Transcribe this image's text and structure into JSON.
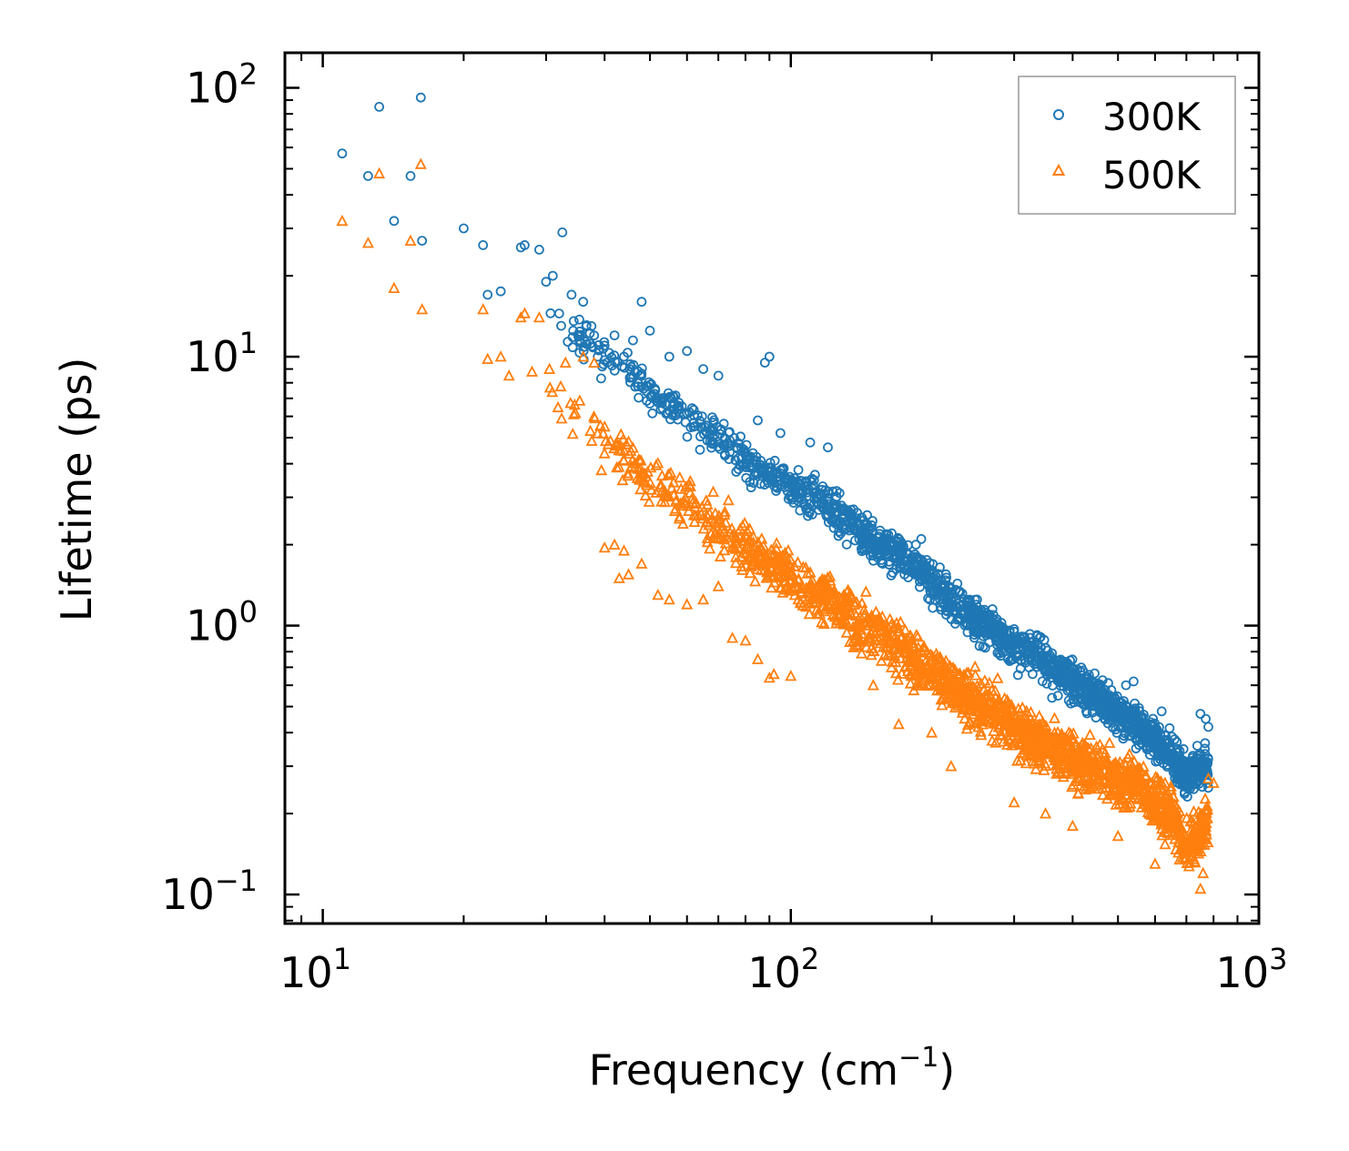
{
  "chart_data": {
    "type": "scatter",
    "title": "",
    "xlabel": "Frequency (cm",
    "xlabel_sup": "−1",
    "xlabel_end": ")",
    "ylabel": "Lifetime (ps)",
    "xscale": "log",
    "yscale": "log",
    "xlim": [
      8.3,
      1000
    ],
    "ylim": [
      0.078,
      135
    ],
    "x_ticks": [
      {
        "base": "10",
        "exp": "1",
        "value": 10
      },
      {
        "base": "10",
        "exp": "2",
        "value": 100
      },
      {
        "base": "10",
        "exp": "3",
        "value": 1000
      }
    ],
    "y_ticks": [
      {
        "base": "10",
        "exp": "−1",
        "value": 0.1
      },
      {
        "base": "10",
        "exp": "0",
        "value": 1
      },
      {
        "base": "10",
        "exp": "1",
        "value": 10
      },
      {
        "base": "10",
        "exp": "2",
        "value": 100
      }
    ],
    "legend_position": "top-right",
    "series": [
      {
        "name": "300K",
        "marker": "circle",
        "color": "#1f77b4",
        "points": [
          [
            11.0,
            57
          ],
          [
            12.5,
            47
          ],
          [
            13.2,
            85
          ],
          [
            14.2,
            32
          ],
          [
            15.4,
            47
          ],
          [
            16.2,
            92
          ],
          [
            16.3,
            27
          ],
          [
            20.0,
            30
          ],
          [
            22.0,
            26
          ],
          [
            22.5,
            17
          ],
          [
            24.0,
            17.5
          ],
          [
            26.5,
            25.5
          ],
          [
            27.0,
            26
          ],
          [
            29.0,
            25
          ],
          [
            30.0,
            19
          ],
          [
            31.0,
            20
          ],
          [
            32.5,
            29
          ],
          [
            34.0,
            17
          ],
          [
            36.0,
            16
          ],
          [
            37.5,
            13
          ],
          [
            38.0,
            12
          ],
          [
            40.0,
            11
          ],
          [
            42.0,
            12
          ],
          [
            44.0,
            10
          ],
          [
            46.0,
            11.5
          ],
          [
            48.0,
            16
          ],
          [
            50.0,
            12.5
          ],
          [
            55.0,
            10
          ],
          [
            60.0,
            10.5
          ],
          [
            65.0,
            9
          ],
          [
            70.0,
            8.5
          ],
          [
            88.0,
            9.5
          ],
          [
            90.0,
            10
          ],
          [
            85.0,
            5.8
          ],
          [
            95.0,
            5.2
          ],
          [
            110.0,
            4.8
          ],
          [
            120.0,
            4.6
          ],
          [
            185.0,
            2.0
          ],
          [
            190.0,
            2.1
          ],
          [
            250.0,
            1.25
          ],
          [
            300.0,
            0.95
          ],
          [
            340.0,
            0.9
          ],
          [
            520.0,
            0.6
          ],
          [
            540.0,
            0.62
          ],
          [
            620.0,
            0.48
          ],
          [
            750.0,
            0.47
          ],
          [
            770.0,
            0.45
          ],
          [
            780.0,
            0.42
          ]
        ],
        "trend": [
          [
            30.0,
            15
          ],
          [
            40.0,
            10
          ],
          [
            50.0,
            7.5
          ],
          [
            60.0,
            6.0
          ],
          [
            70.0,
            5.0
          ],
          [
            80.0,
            4.2
          ],
          [
            100.0,
            3.3
          ],
          [
            120.0,
            2.8
          ],
          [
            150.0,
            2.1
          ],
          [
            180.0,
            1.7
          ],
          [
            220.0,
            1.25
          ],
          [
            270.0,
            0.95
          ],
          [
            330.0,
            0.78
          ],
          [
            400.0,
            0.62
          ],
          [
            480.0,
            0.5
          ],
          [
            560.0,
            0.42
          ],
          [
            650.0,
            0.33
          ],
          [
            700.0,
            0.27
          ],
          [
            740.0,
            0.3
          ],
          [
            780.0,
            0.3
          ]
        ]
      },
      {
        "name": "500K",
        "marker": "triangle",
        "color": "#ff7f0e",
        "points": [
          [
            11.0,
            32
          ],
          [
            12.5,
            26.5
          ],
          [
            13.2,
            48
          ],
          [
            14.2,
            18
          ],
          [
            15.4,
            27
          ],
          [
            16.2,
            52
          ],
          [
            16.3,
            15
          ],
          [
            22.0,
            15
          ],
          [
            22.5,
            9.8
          ],
          [
            24.0,
            10
          ],
          [
            25.0,
            8.5
          ],
          [
            26.5,
            14
          ],
          [
            27.0,
            14.5
          ],
          [
            28.0,
            8.8
          ],
          [
            29.0,
            14
          ],
          [
            30.5,
            9.0
          ],
          [
            33.0,
            9.5
          ],
          [
            36.0,
            10
          ],
          [
            38.0,
            9.5
          ],
          [
            40.0,
            1.95
          ],
          [
            42.0,
            2.0
          ],
          [
            43.0,
            1.5
          ],
          [
            44.0,
            1.9
          ],
          [
            45.0,
            1.55
          ],
          [
            48.0,
            1.7
          ],
          [
            52.0,
            1.3
          ],
          [
            55.0,
            1.25
          ],
          [
            60.0,
            1.2
          ],
          [
            65.0,
            1.25
          ],
          [
            70.0,
            1.4
          ],
          [
            75.0,
            0.9
          ],
          [
            80.0,
            0.88
          ],
          [
            85.0,
            0.75
          ],
          [
            90.0,
            0.64
          ],
          [
            92.0,
            0.66
          ],
          [
            100.0,
            0.65
          ],
          [
            150.0,
            0.6
          ],
          [
            170.0,
            0.43
          ],
          [
            200.0,
            0.4
          ],
          [
            220.0,
            0.3
          ],
          [
            300.0,
            0.22
          ],
          [
            350.0,
            0.2
          ],
          [
            400.0,
            0.18
          ],
          [
            500.0,
            0.165
          ],
          [
            600.0,
            0.13
          ],
          [
            700.0,
            0.15
          ],
          [
            750.0,
            0.105
          ],
          [
            760.0,
            0.12
          ],
          [
            780.0,
            0.27
          ],
          [
            800.0,
            0.26
          ]
        ],
        "trend": [
          [
            30.0,
            8
          ],
          [
            40.0,
            5.0
          ],
          [
            50.0,
            3.6
          ],
          [
            60.0,
            2.8
          ],
          [
            70.0,
            2.3
          ],
          [
            80.0,
            1.95
          ],
          [
            100.0,
            1.5
          ],
          [
            120.0,
            1.25
          ],
          [
            150.0,
            0.95
          ],
          [
            180.0,
            0.78
          ],
          [
            220.0,
            0.6
          ],
          [
            270.0,
            0.47
          ],
          [
            330.0,
            0.38
          ],
          [
            400.0,
            0.32
          ],
          [
            480.0,
            0.28
          ],
          [
            560.0,
            0.25
          ],
          [
            650.0,
            0.2
          ],
          [
            700.0,
            0.15
          ],
          [
            740.0,
            0.16
          ],
          [
            780.0,
            0.2
          ]
        ]
      }
    ]
  }
}
